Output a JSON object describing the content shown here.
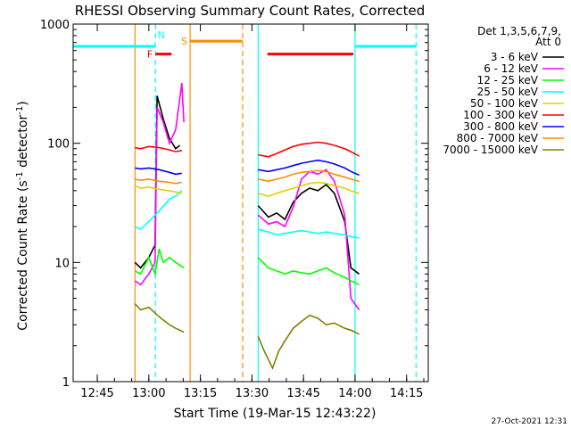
{
  "chart_data": {
    "type": "line",
    "title": "RHESSI Observing Summary Count Rates, Corrected",
    "xlabel": "Start Time (19-Mar-15 12:43:22)",
    "ylabel": "Corrected Count Rate (s",
    "ylabel_sup": "-1",
    "ylabel_mid": " detector",
    "ylabel_tail": ")",
    "y_scale": "log",
    "ylim": [
      1,
      1000
    ],
    "xlim_minutes": [
      12.633,
      14.355
    ],
    "x_ticks": [
      {
        "t": 12.75,
        "label": "12:45"
      },
      {
        "t": 13.0,
        "label": "13:00"
      },
      {
        "t": 13.25,
        "label": "13:15"
      },
      {
        "t": 13.5,
        "label": "13:30"
      },
      {
        "t": 13.75,
        "label": "13:45"
      },
      {
        "t": 14.0,
        "label": "14:00"
      },
      {
        "t": 14.25,
        "label": "14:15"
      }
    ],
    "y_ticks": [
      {
        "v": 1,
        "label": "1"
      },
      {
        "v": 10,
        "label": "10"
      },
      {
        "v": 100,
        "label": "100"
      },
      {
        "v": 1000,
        "label": "1000"
      }
    ],
    "legend": {
      "placement": "right",
      "header_line1": "Det 1,3,5,6,7,9,",
      "header_line2": "Att 0"
    },
    "timestamp": "27-Oct-2021 12:31",
    "series": [
      {
        "name": "3 - 6 keV",
        "color": "#000000",
        "segments": [
          [
            [
              12.933,
              10
            ],
            [
              12.96,
              9
            ],
            [
              13.0,
              11
            ],
            [
              13.03,
              14
            ],
            [
              13.04,
              250
            ],
            [
              13.07,
              160
            ],
            [
              13.1,
              110
            ],
            [
              13.13,
              90
            ],
            [
              13.15,
              96
            ]
          ],
          [
            [
              13.53,
              30
            ],
            [
              13.58,
              24
            ],
            [
              13.62,
              26
            ],
            [
              13.66,
              23
            ],
            [
              13.7,
              32
            ],
            [
              13.74,
              38
            ],
            [
              13.78,
              42
            ],
            [
              13.82,
              40
            ],
            [
              13.86,
              45
            ],
            [
              13.9,
              38
            ],
            [
              13.95,
              22
            ],
            [
              13.98,
              9
            ],
            [
              14.02,
              8
            ]
          ]
        ]
      },
      {
        "name": "6 - 12 keV",
        "color": "#ff00ff",
        "segments": [
          [
            [
              12.933,
              7
            ],
            [
              12.96,
              6.5
            ],
            [
              13.0,
              8
            ],
            [
              13.03,
              10
            ],
            [
              13.04,
              200
            ],
            [
              13.07,
              150
            ],
            [
              13.1,
              100
            ],
            [
              13.13,
              130
            ],
            [
              13.16,
              320
            ],
            [
              13.17,
              150
            ]
          ],
          [
            [
              13.53,
              25
            ],
            [
              13.58,
              21
            ],
            [
              13.62,
              22
            ],
            [
              13.66,
              20
            ],
            [
              13.7,
              29
            ],
            [
              13.74,
              50
            ],
            [
              13.78,
              58
            ],
            [
              13.82,
              55
            ],
            [
              13.86,
              60
            ],
            [
              13.9,
              48
            ],
            [
              13.95,
              25
            ],
            [
              13.98,
              5
            ],
            [
              14.02,
              4
            ]
          ]
        ]
      },
      {
        "name": "12 - 25 keV",
        "color": "#00ff00",
        "segments": [
          [
            [
              12.933,
              8.5
            ],
            [
              12.96,
              8
            ],
            [
              13.0,
              11
            ],
            [
              13.03,
              8
            ],
            [
              13.05,
              13
            ],
            [
              13.07,
              10
            ],
            [
              13.1,
              11
            ],
            [
              13.13,
              10
            ],
            [
              13.17,
              9
            ]
          ],
          [
            [
              13.53,
              11
            ],
            [
              13.58,
              9
            ],
            [
              13.62,
              8.5
            ],
            [
              13.66,
              8
            ],
            [
              13.7,
              8.5
            ],
            [
              13.74,
              8.2
            ],
            [
              13.78,
              8
            ],
            [
              13.82,
              8.5
            ],
            [
              13.86,
              9
            ],
            [
              13.9,
              8.2
            ],
            [
              13.95,
              7.5
            ],
            [
              13.98,
              7
            ],
            [
              14.02,
              6.5
            ]
          ]
        ]
      },
      {
        "name": "25 - 50 keV",
        "color": "#00ffff",
        "segments": [
          [
            [
              12.933,
              20
            ],
            [
              12.96,
              19
            ],
            [
              13.0,
              22
            ],
            [
              13.05,
              27
            ],
            [
              13.1,
              34
            ],
            [
              13.13,
              36
            ],
            [
              13.16,
              40
            ]
          ],
          [
            [
              13.53,
              19
            ],
            [
              13.58,
              18
            ],
            [
              13.62,
              17
            ],
            [
              13.66,
              17.5
            ],
            [
              13.7,
              18
            ],
            [
              13.74,
              18.5
            ],
            [
              13.78,
              18
            ],
            [
              13.82,
              17.5
            ],
            [
              13.86,
              18
            ],
            [
              13.9,
              17.5
            ],
            [
              13.95,
              17
            ],
            [
              13.98,
              16.5
            ],
            [
              14.02,
              16
            ]
          ]
        ]
      },
      {
        "name": "50 - 100 keV",
        "color": "#e0d000",
        "segments": [
          [
            [
              12.933,
              44
            ],
            [
              12.96,
              42
            ],
            [
              13.0,
              43
            ],
            [
              13.05,
              41
            ],
            [
              13.1,
              40
            ],
            [
              13.13,
              39
            ],
            [
              13.16,
              38
            ]
          ],
          [
            [
              13.53,
              38
            ],
            [
              13.58,
              36
            ],
            [
              13.62,
              38
            ],
            [
              13.66,
              40
            ],
            [
              13.7,
              42
            ],
            [
              13.74,
              44
            ],
            [
              13.78,
              46
            ],
            [
              13.82,
              47
            ],
            [
              13.86,
              46
            ],
            [
              13.9,
              44
            ],
            [
              13.95,
              42
            ],
            [
              13.98,
              40
            ],
            [
              14.02,
              38
            ]
          ]
        ]
      },
      {
        "name": "100 - 300 keV",
        "color": "#ff0000",
        "segments": [
          [
            [
              12.933,
              92
            ],
            [
              12.96,
              90
            ],
            [
              13.0,
              94
            ],
            [
              13.05,
              92
            ],
            [
              13.1,
              88
            ],
            [
              13.13,
              85
            ],
            [
              13.16,
              87
            ]
          ],
          [
            [
              13.53,
              80
            ],
            [
              13.58,
              77
            ],
            [
              13.62,
              82
            ],
            [
              13.66,
              88
            ],
            [
              13.7,
              94
            ],
            [
              13.74,
              98
            ],
            [
              13.78,
              100
            ],
            [
              13.82,
              102
            ],
            [
              13.86,
              100
            ],
            [
              13.9,
              96
            ],
            [
              13.95,
              90
            ],
            [
              13.98,
              85
            ],
            [
              14.02,
              78
            ]
          ]
        ]
      },
      {
        "name": "300 - 800 keV",
        "color": "#0000ff",
        "segments": [
          [
            [
              12.933,
              62
            ],
            [
              12.96,
              61
            ],
            [
              13.0,
              62
            ],
            [
              13.05,
              60
            ],
            [
              13.1,
              57
            ],
            [
              13.13,
              55
            ],
            [
              13.16,
              56
            ]
          ],
          [
            [
              13.53,
              60
            ],
            [
              13.58,
              58
            ],
            [
              13.62,
              60
            ],
            [
              13.66,
              62
            ],
            [
              13.7,
              65
            ],
            [
              13.74,
              68
            ],
            [
              13.78,
              70
            ],
            [
              13.82,
              72
            ],
            [
              13.86,
              70
            ],
            [
              13.9,
              67
            ],
            [
              13.95,
              62
            ],
            [
              13.98,
              58
            ],
            [
              14.02,
              54
            ]
          ]
        ]
      },
      {
        "name": "800 - 7000 keV",
        "color": "#ff8c00",
        "segments": [
          [
            [
              12.933,
              50
            ],
            [
              12.96,
              49
            ],
            [
              13.0,
              50
            ],
            [
              13.05,
              48
            ],
            [
              13.1,
              47
            ],
            [
              13.13,
              46
            ],
            [
              13.16,
              47
            ]
          ],
          [
            [
              13.53,
              50
            ],
            [
              13.58,
              48
            ],
            [
              13.62,
              50
            ],
            [
              13.66,
              52
            ],
            [
              13.7,
              55
            ],
            [
              13.74,
              57
            ],
            [
              13.78,
              58
            ],
            [
              13.82,
              59
            ],
            [
              13.86,
              58
            ],
            [
              13.9,
              55
            ],
            [
              13.95,
              52
            ],
            [
              13.98,
              50
            ],
            [
              14.02,
              48
            ]
          ]
        ]
      },
      {
        "name": "7000 - 15000 keV",
        "color": "#808000",
        "segments": [
          [
            [
              12.933,
              4.5
            ],
            [
              12.96,
              4
            ],
            [
              13.0,
              4.2
            ],
            [
              13.05,
              3.5
            ],
            [
              13.1,
              3
            ],
            [
              13.13,
              2.8
            ],
            [
              13.17,
              2.6
            ]
          ],
          [
            [
              13.53,
              2.4
            ],
            [
              13.56,
              1.8
            ],
            [
              13.6,
              1.3
            ],
            [
              13.63,
              1.8
            ],
            [
              13.66,
              2.2
            ],
            [
              13.7,
              2.8
            ],
            [
              13.74,
              3.2
            ],
            [
              13.78,
              3.6
            ],
            [
              13.82,
              3.4
            ],
            [
              13.86,
              3.0
            ],
            [
              13.9,
              3.1
            ],
            [
              13.95,
              2.8
            ],
            [
              13.98,
              2.7
            ],
            [
              14.02,
              2.5
            ]
          ]
        ]
      }
    ],
    "state_bars": [
      {
        "kind": "night",
        "label": "",
        "color": "#00ffff",
        "t0": 12.633,
        "t1": 13.032,
        "v": 650
      },
      {
        "kind": "night",
        "label": "",
        "color": "#00ffff",
        "t0": 14.0,
        "t1": 14.296,
        "v": 650
      },
      {
        "kind": "flare",
        "label": "F",
        "color": "#ff0000",
        "t0": 13.032,
        "t1": 13.11,
        "v": 560
      },
      {
        "kind": "flare",
        "label": "",
        "color": "#ff0000",
        "t0": 13.575,
        "t1": 13.992,
        "v": 560
      },
      {
        "kind": "saa",
        "label": "S",
        "color": "#ff8c00",
        "t0": 13.2,
        "t1": 13.455,
        "v": 720
      }
    ],
    "state_labels": [
      {
        "label": "N",
        "color": "#00ffff",
        "t": 13.06,
        "v": 760
      }
    ],
    "vlines": [
      {
        "t": 12.933,
        "color": "#ff8c00",
        "dash": false
      },
      {
        "t": 13.032,
        "color": "#00ffff",
        "dash": true
      },
      {
        "t": 13.2,
        "color": "#ff8c00",
        "dash": false
      },
      {
        "t": 13.455,
        "color": "#ff8c00",
        "dash": true
      },
      {
        "t": 13.53,
        "color": "#00ffff",
        "dash": false
      },
      {
        "t": 14.0,
        "color": "#00ffff",
        "dash": false
      },
      {
        "t": 14.296,
        "color": "#00ffff",
        "dash": true
      }
    ]
  }
}
